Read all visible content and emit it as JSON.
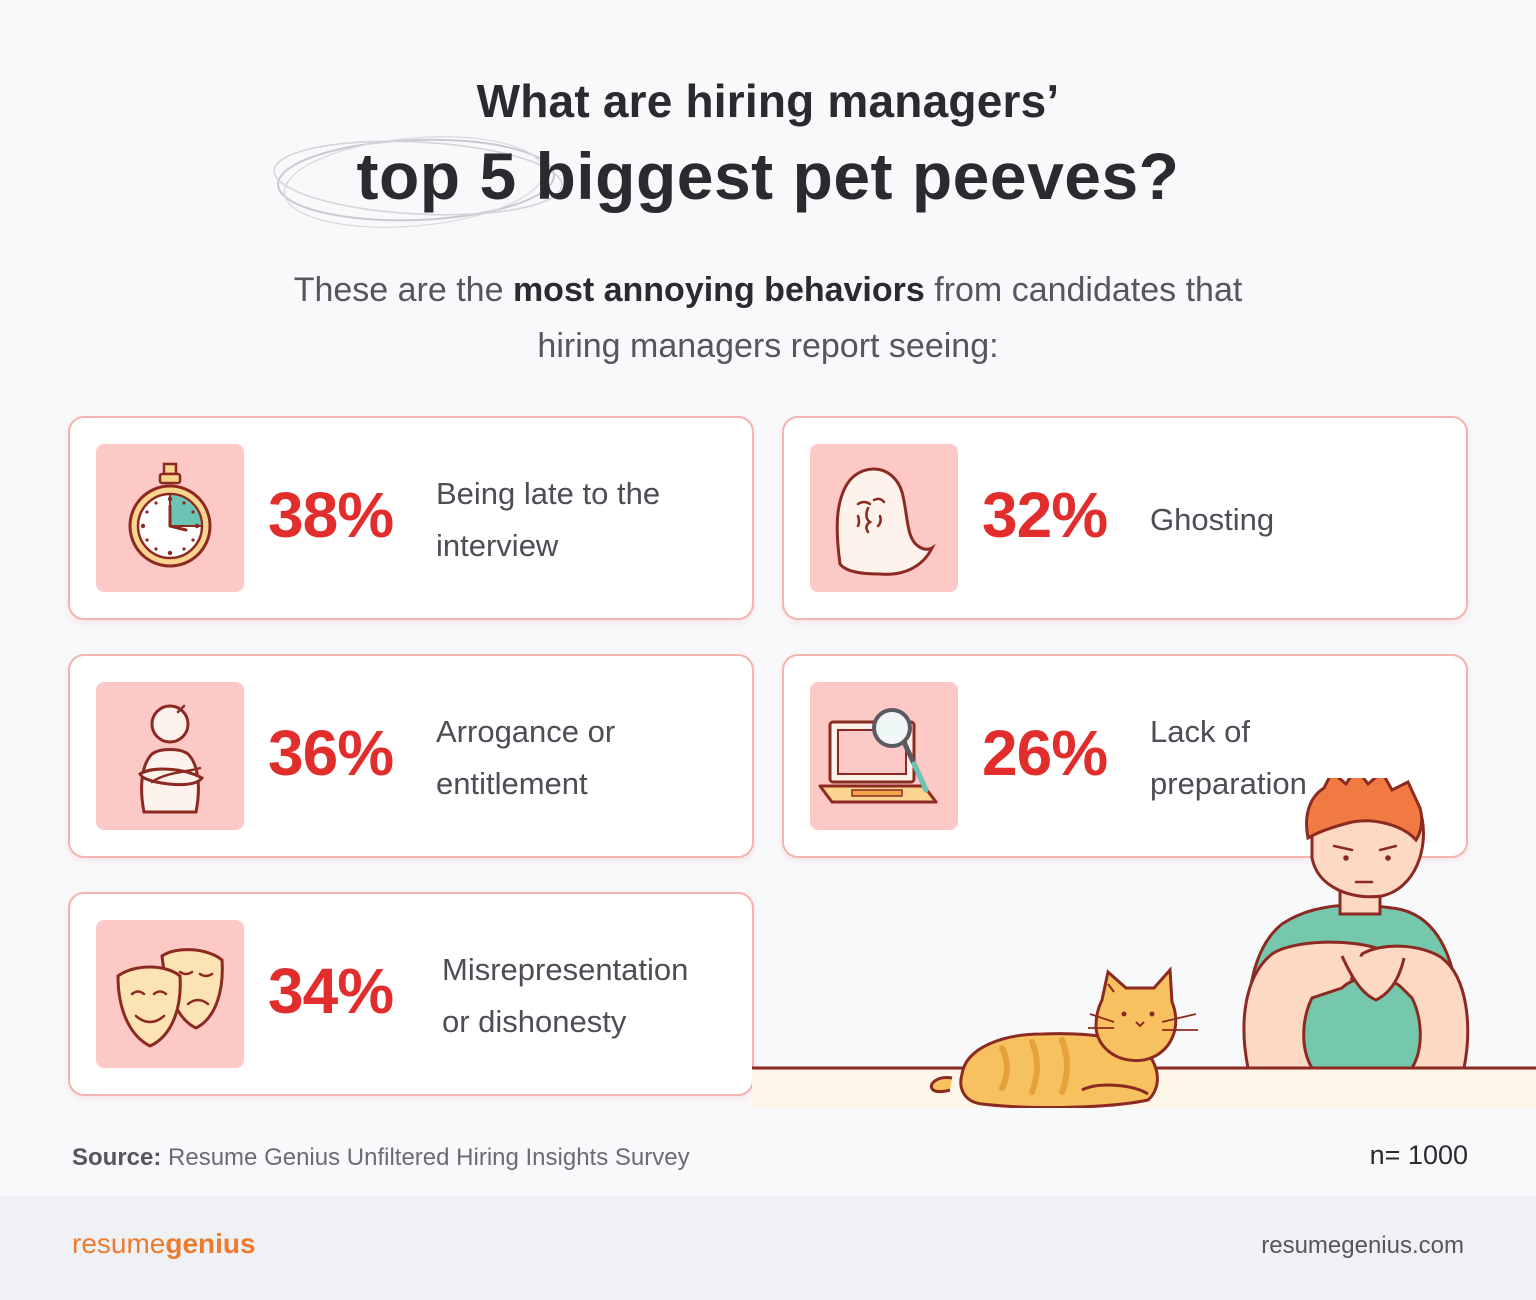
{
  "header": {
    "title_line1": "What are hiring managers’",
    "title_line2": "top 5 biggest pet peeves?",
    "subtitle_pre": "These are the ",
    "subtitle_bold": "most annoying behaviors",
    "subtitle_post": " from candidates that",
    "subtitle_line2": "hiring managers report seeing:"
  },
  "stats": [
    {
      "percent": "38%",
      "line1": "Being late to the",
      "line2": "interview",
      "icon": "stopwatch-icon"
    },
    {
      "percent": "32%",
      "line1": "Ghosting",
      "line2": "",
      "icon": "ghost-icon"
    },
    {
      "percent": "36%",
      "line1": "Arrogance or",
      "line2": "entitlement",
      "icon": "arms-crossed-person-icon"
    },
    {
      "percent": "26%",
      "line1": "Lack of",
      "line2": "preparation",
      "icon": "laptop-magnifier-icon"
    },
    {
      "percent": "34%",
      "line1": "Misrepresentation",
      "line2": "or dishonesty",
      "icon": "theater-masks-icon"
    }
  ],
  "colors": {
    "accent_red": "#e22d2d",
    "card_border": "#f4b3b0",
    "icon_bg": "#fdc9c7",
    "brand_orange": "#ee7a2e"
  },
  "footer": {
    "source_label": "Source:",
    "source_text": " Resume Genius Unfiltered Hiring Insights Survey",
    "sample_size": "n= 1000",
    "brand_regular": "resume",
    "brand_bold": "genius",
    "website": "resumegenius.com"
  }
}
